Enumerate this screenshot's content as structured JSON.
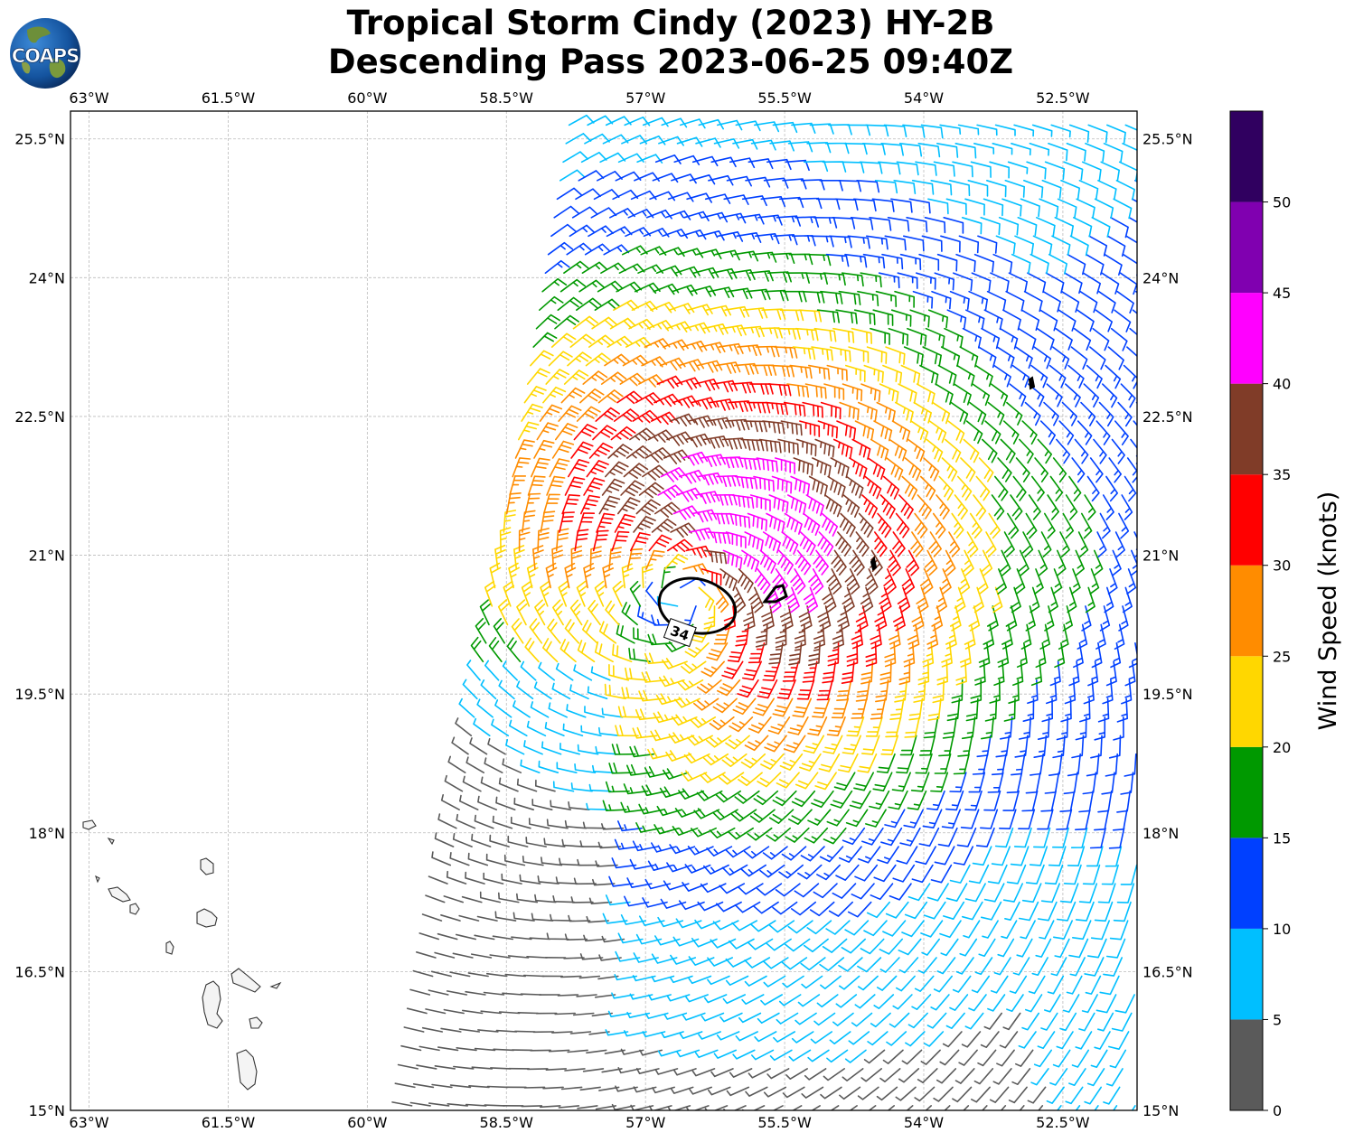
{
  "title": {
    "line1": "Tropical Storm Cindy (2023) HY-2B",
    "line2": "Descending Pass 2023-06-25 09:40Z"
  },
  "logo": {
    "text": "COAPS",
    "icon": "coaps-globe-logo"
  },
  "map": {
    "lon_range": [
      -63.2,
      -51.7
    ],
    "lat_range": [
      15.0,
      25.8
    ],
    "lon_ticks": [
      {
        "value": -63.0,
        "label": "63°W"
      },
      {
        "value": -61.5,
        "label": "61.5°W"
      },
      {
        "value": -60.0,
        "label": "60°W"
      },
      {
        "value": -58.5,
        "label": "58.5°W"
      },
      {
        "value": -57.0,
        "label": "57°W"
      },
      {
        "value": -55.5,
        "label": "55.5°W"
      },
      {
        "value": -54.0,
        "label": "54°W"
      },
      {
        "value": -52.5,
        "label": "52.5°W"
      }
    ],
    "lat_ticks": [
      {
        "value": 15.0,
        "label": "15°N"
      },
      {
        "value": 16.5,
        "label": "16.5°N"
      },
      {
        "value": 18.0,
        "label": "18°N"
      },
      {
        "value": 19.5,
        "label": "19.5°N"
      },
      {
        "value": 21.0,
        "label": "21°N"
      },
      {
        "value": 22.5,
        "label": "22.5°N"
      },
      {
        "value": 24.0,
        "label": "24°N"
      },
      {
        "value": 25.5,
        "label": "25.5°N"
      }
    ],
    "gridlines": true,
    "contour_label": "34",
    "storm_center": {
      "lon": -56.6,
      "lat": 20.55
    }
  },
  "colorbar": {
    "title": "Wind Speed (knots)",
    "ticks": [
      "0",
      "5",
      "10",
      "15",
      "20",
      "25",
      "30",
      "35",
      "40",
      "45",
      "50"
    ],
    "bins": [
      {
        "min": 0,
        "max": 5,
        "color": "#5a5a5a"
      },
      {
        "min": 5,
        "max": 10,
        "color": "#00bfff"
      },
      {
        "min": 10,
        "max": 15,
        "color": "#0040ff"
      },
      {
        "min": 15,
        "max": 20,
        "color": "#009900"
      },
      {
        "min": 20,
        "max": 25,
        "color": "#ffd700"
      },
      {
        "min": 25,
        "max": 30,
        "color": "#ff8c00"
      },
      {
        "min": 30,
        "max": 35,
        "color": "#ff0000"
      },
      {
        "min": 35,
        "max": 40,
        "color": "#803c28"
      },
      {
        "min": 40,
        "max": 45,
        "color": "#ff00ff"
      },
      {
        "min": 45,
        "max": 50,
        "color": "#8000b0"
      },
      {
        "min": 50,
        "max": 55,
        "color": "#300060"
      }
    ]
  }
}
